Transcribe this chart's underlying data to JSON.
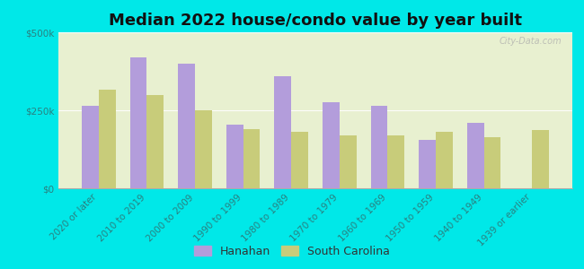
{
  "title": "Median 2022 house/condo value by year built",
  "categories": [
    "2020 or later",
    "2010 to 2019",
    "2000 to 2009",
    "1990 to 1999",
    "1980 to 1989",
    "1970 to 1979",
    "1960 to 1969",
    "1950 to 1959",
    "1940 to 1949",
    "1939 or earlier"
  ],
  "hanahan": [
    265000,
    420000,
    400000,
    205000,
    360000,
    275000,
    265000,
    155000,
    210000,
    0
  ],
  "south_carolina": [
    315000,
    300000,
    250000,
    190000,
    182000,
    170000,
    170000,
    182000,
    165000,
    188000
  ],
  "hanahan_color": "#b39ddb",
  "sc_color": "#c8cc7a",
  "background_color": "#00e8e8",
  "plot_bg_top": "#e8f0d0",
  "plot_bg_bottom": "#f5f8e8",
  "ylim": [
    0,
    500000
  ],
  "yticks": [
    0,
    250000,
    500000
  ],
  "ytick_labels": [
    "$0",
    "$250k",
    "$500k"
  ],
  "watermark": "City-Data.com",
  "legend_hanahan": "Hanahan",
  "legend_sc": "South Carolina",
  "title_fontsize": 13,
  "tick_fontsize": 7.5,
  "legend_fontsize": 9
}
